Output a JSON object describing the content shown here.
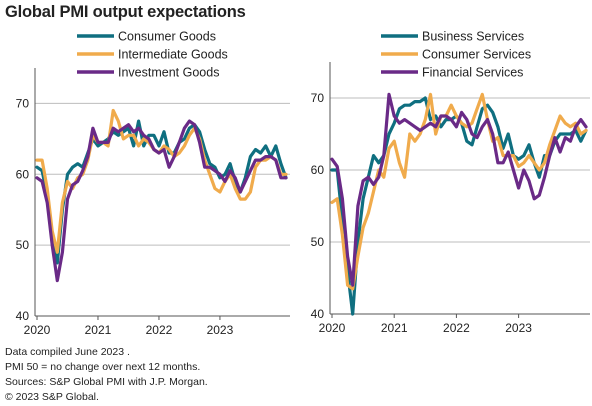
{
  "title": "Global PMI output expectations",
  "notes": [
    "Data compiled June 2023 .",
    "PMI 50 = no change over next 12 months.",
    "Sources: S&P Global PMI with J.P. Morgan.",
    "© 2023 S&P Global."
  ],
  "colors": {
    "teal": "#0f6f80",
    "orange": "#f0ab4c",
    "purple": "#6a2a87",
    "grid": "#bdbdbd",
    "axis": "#555555"
  },
  "chart_data": [
    {
      "type": "line",
      "title": "",
      "x_start": "2020-01",
      "frequency": "monthly",
      "xticks": [
        "2020",
        "2021",
        "2022",
        "2023"
      ],
      "ylim": [
        40,
        75
      ],
      "yticks": [
        40,
        50,
        60,
        70
      ],
      "grid": "horizontal",
      "legend": "top",
      "series": [
        {
          "name": "Consumer Goods",
          "color": "teal",
          "values": [
            61.0,
            60.5,
            57.0,
            51.0,
            47.5,
            55.0,
            60.0,
            61.0,
            61.5,
            61.0,
            63.0,
            65.0,
            64.0,
            64.5,
            65.0,
            66.0,
            65.5,
            66.0,
            66.5,
            64.0,
            67.5,
            64.0,
            65.5,
            65.5,
            64.0,
            66.0,
            63.0,
            63.0,
            64.5,
            65.0,
            66.5,
            67.0,
            66.0,
            63.5,
            61.5,
            61.0,
            59.5,
            60.0,
            61.5,
            59.0,
            57.5,
            59.5,
            62.5,
            63.5,
            63.0,
            64.0,
            62.5,
            64.0,
            61.5,
            59.5
          ]
        },
        {
          "name": "Intermediate Goods",
          "color": "orange",
          "values": [
            62.0,
            62.0,
            58.0,
            52.0,
            49.0,
            56.0,
            59.0,
            58.0,
            59.5,
            60.0,
            62.0,
            65.5,
            64.5,
            64.5,
            64.0,
            69.0,
            67.5,
            65.0,
            65.5,
            65.5,
            64.0,
            65.0,
            64.5,
            63.5,
            63.0,
            64.0,
            63.5,
            62.5,
            63.0,
            64.0,
            65.5,
            66.5,
            65.0,
            62.0,
            60.0,
            58.0,
            57.5,
            59.0,
            60.0,
            58.0,
            56.5,
            56.5,
            57.5,
            61.0,
            62.0,
            62.0,
            62.5,
            62.0,
            60.0,
            60.0
          ]
        },
        {
          "name": "Investment Goods",
          "color": "purple",
          "values": [
            59.5,
            59.0,
            56.0,
            50.0,
            45.0,
            49.0,
            56.5,
            58.5,
            59.0,
            60.5,
            62.5,
            66.5,
            64.5,
            64.5,
            64.5,
            66.5,
            66.0,
            66.5,
            67.0,
            66.0,
            66.5,
            65.5,
            65.0,
            63.5,
            63.0,
            63.5,
            61.0,
            62.5,
            64.5,
            66.5,
            67.5,
            67.0,
            64.5,
            61.0,
            61.0,
            60.5,
            60.0,
            59.0,
            60.5,
            59.5,
            57.5,
            59.0,
            60.5,
            62.0,
            62.0,
            62.5,
            62.5,
            62.0,
            59.5,
            59.5
          ]
        }
      ]
    },
    {
      "type": "line",
      "title": "",
      "x_start": "2020-01",
      "frequency": "monthly",
      "xticks": [
        "2020",
        "2021",
        "2022",
        "2023"
      ],
      "ylim": [
        40,
        75
      ],
      "yticks": [
        40,
        50,
        60,
        70
      ],
      "grid": "horizontal",
      "legend": "top",
      "series": [
        {
          "name": "Business Services",
          "color": "teal",
          "values": [
            60.0,
            60.0,
            53.0,
            46.0,
            40.0,
            50.0,
            56.0,
            59.0,
            62.0,
            61.0,
            62.0,
            65.0,
            66.5,
            68.5,
            69.0,
            69.0,
            69.5,
            69.5,
            70.0,
            67.0,
            67.5,
            66.0,
            67.0,
            67.0,
            67.5,
            66.5,
            64.0,
            63.5,
            66.0,
            68.5,
            69.0,
            68.0,
            66.0,
            63.0,
            65.0,
            62.0,
            61.5,
            62.0,
            63.5,
            61.0,
            59.0,
            62.0,
            62.0,
            64.0,
            65.0,
            65.0,
            65.0,
            65.5,
            64.0,
            65.5
          ]
        },
        {
          "name": "Consumer Services",
          "color": "orange",
          "values": [
            55.5,
            56.0,
            51.0,
            44.0,
            43.5,
            48.0,
            52.0,
            54.0,
            57.0,
            60.0,
            59.0,
            63.0,
            64.0,
            61.0,
            59.0,
            65.0,
            64.0,
            65.0,
            67.0,
            70.5,
            65.0,
            67.5,
            67.5,
            69.0,
            67.5,
            66.5,
            66.0,
            66.5,
            68.5,
            70.5,
            67.0,
            64.0,
            64.5,
            62.0,
            62.0,
            62.0,
            60.5,
            61.0,
            62.0,
            61.0,
            60.0,
            61.0,
            63.5,
            65.5,
            67.5,
            66.5,
            66.0,
            66.5,
            65.0,
            65.5
          ]
        },
        {
          "name": "Financial Services",
          "color": "purple",
          "values": [
            61.5,
            60.5,
            56.0,
            48.0,
            44.0,
            55.0,
            58.5,
            59.0,
            58.0,
            59.0,
            62.0,
            70.5,
            67.5,
            66.5,
            67.0,
            66.5,
            66.0,
            65.5,
            66.0,
            66.5,
            66.0,
            67.5,
            67.5,
            67.0,
            66.0,
            68.0,
            67.0,
            65.0,
            64.5,
            66.0,
            67.0,
            65.0,
            61.0,
            61.0,
            62.5,
            60.0,
            57.5,
            60.0,
            58.5,
            56.0,
            56.5,
            59.0,
            62.0,
            64.5,
            62.5,
            64.5,
            64.0,
            66.0,
            67.0,
            66.0
          ]
        }
      ]
    }
  ]
}
